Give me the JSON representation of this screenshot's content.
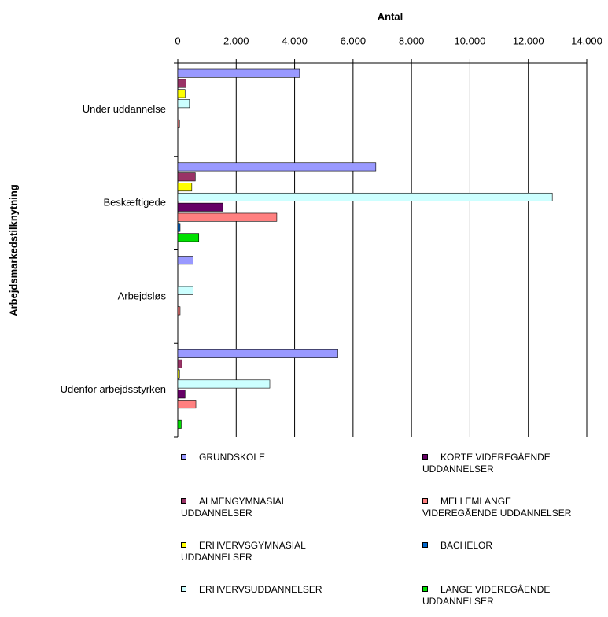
{
  "chart_data": {
    "type": "bar",
    "orientation": "horizontal",
    "xlabel": "Antal",
    "ylabel": "Arbejdsmarkedstilknytning",
    "categories": [
      "Under uddannelse",
      "Beskæftigede",
      "Arbejdsløs",
      "Udenfor arbejdsstyrken"
    ],
    "xlim": [
      0,
      14000
    ],
    "xticks": [
      0,
      {
        "value": 2000,
        "label": "2.000"
      },
      {
        "value": 4000,
        "label": "4.000"
      },
      {
        "value": 6000,
        "label": "6.000"
      },
      {
        "value": 8000,
        "label": "8.000"
      },
      {
        "value": 10000,
        "label": "10.000"
      },
      {
        "value": 12000,
        "label": "12.000"
      },
      {
        "value": 14000,
        "label": "14.000"
      }
    ],
    "grid": true,
    "series": [
      {
        "name": "GRUNDSKOLE",
        "color": "#9999ff",
        "values": [
          4170,
          6780,
          520,
          5480
        ]
      },
      {
        "name": "ALMENGYMNASIAL UDDANNELSER",
        "color": "#993366",
        "values": [
          280,
          600,
          0,
          140
        ]
      },
      {
        "name": "ERHVERVSGYMNASIAL UDDANNELSER",
        "color": "#ffff00",
        "values": [
          250,
          480,
          0,
          60
        ]
      },
      {
        "name": "ERHVERVSUDDANNELSER",
        "color": "#ccffff",
        "values": [
          400,
          12820,
          520,
          3150
        ]
      },
      {
        "name": "KORTE VIDEREGÅENDE UDDANNELSER",
        "color": "#660066",
        "values": [
          0,
          1540,
          0,
          250
        ]
      },
      {
        "name": "MELLEMLANGE VIDEREGÅENDE UDDANNELSER",
        "color": "#ff8080",
        "values": [
          60,
          3390,
          80,
          620
        ]
      },
      {
        "name": "BACHELOR",
        "color": "#0066cc",
        "values": [
          0,
          80,
          0,
          0
        ]
      },
      {
        "name": "LANGE VIDEREGÅENDE UDDANNELSER",
        "color": "#00e000",
        "values": [
          0,
          720,
          0,
          120
        ]
      }
    ]
  }
}
